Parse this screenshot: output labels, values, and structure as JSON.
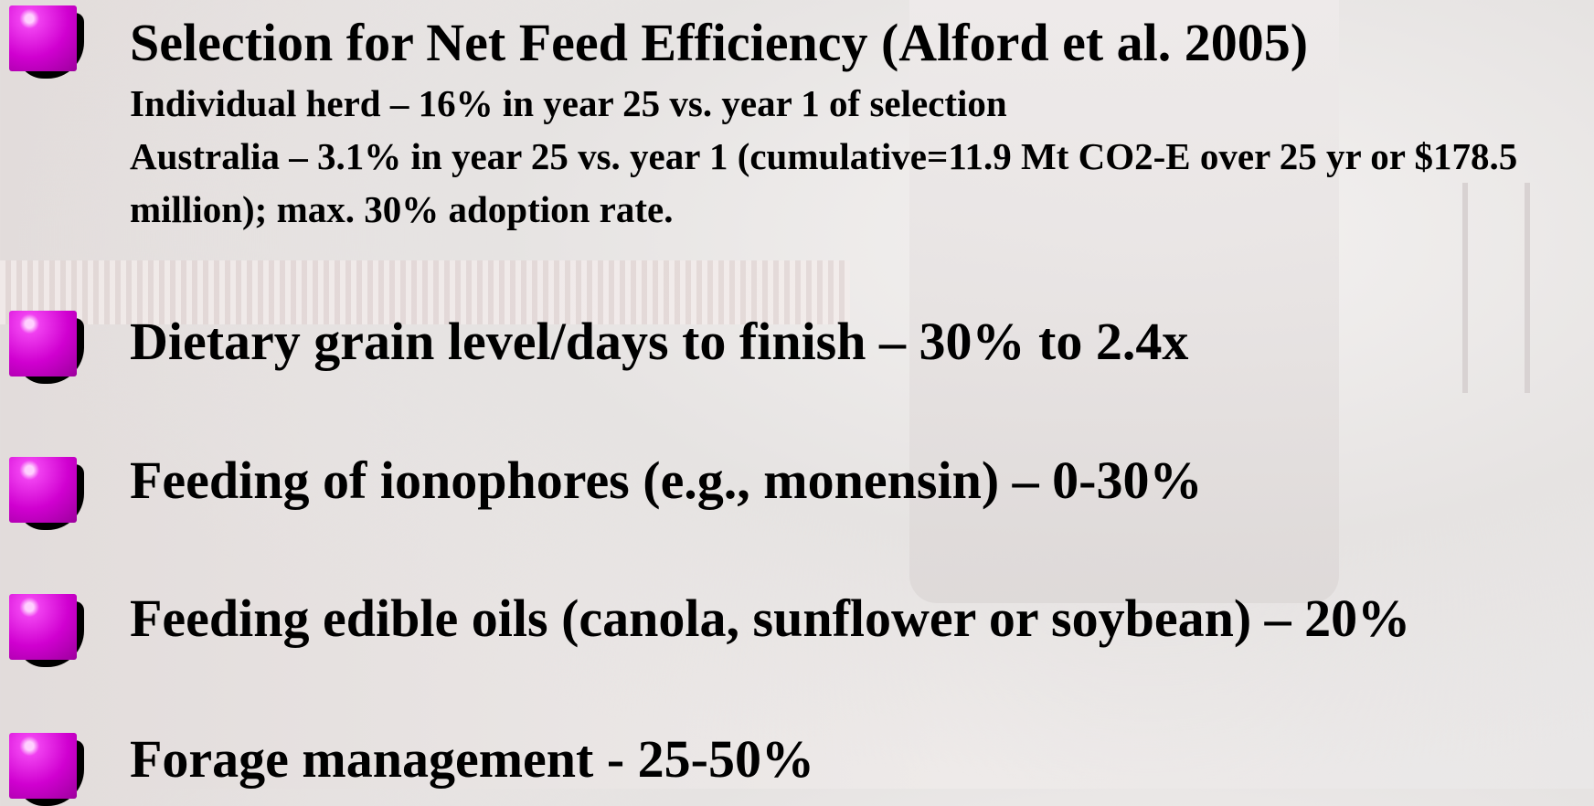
{
  "bullets": [
    {
      "text": "Selection for Net Feed Efficiency (Alford et al. 2005)",
      "details": [
        "Individual herd – 16% in year 25 vs. year 1 of selection",
        "Australia – 3.1% in year 25 vs. year 1 (cumulative=11.9 Mt CO2-E over 25 yr or $178.5 million); max. 30% adoption rate."
      ]
    },
    {
      "text": "Dietary grain level/days to finish –   30% to 2.4x"
    },
    {
      "text": "Feeding of ionophores (e.g., monensin) –   0-30%"
    },
    {
      "text": "Feeding edible oils (canola, sunflower or soybean) –   20%"
    },
    {
      "text": "Forage management -   25-50%"
    }
  ]
}
